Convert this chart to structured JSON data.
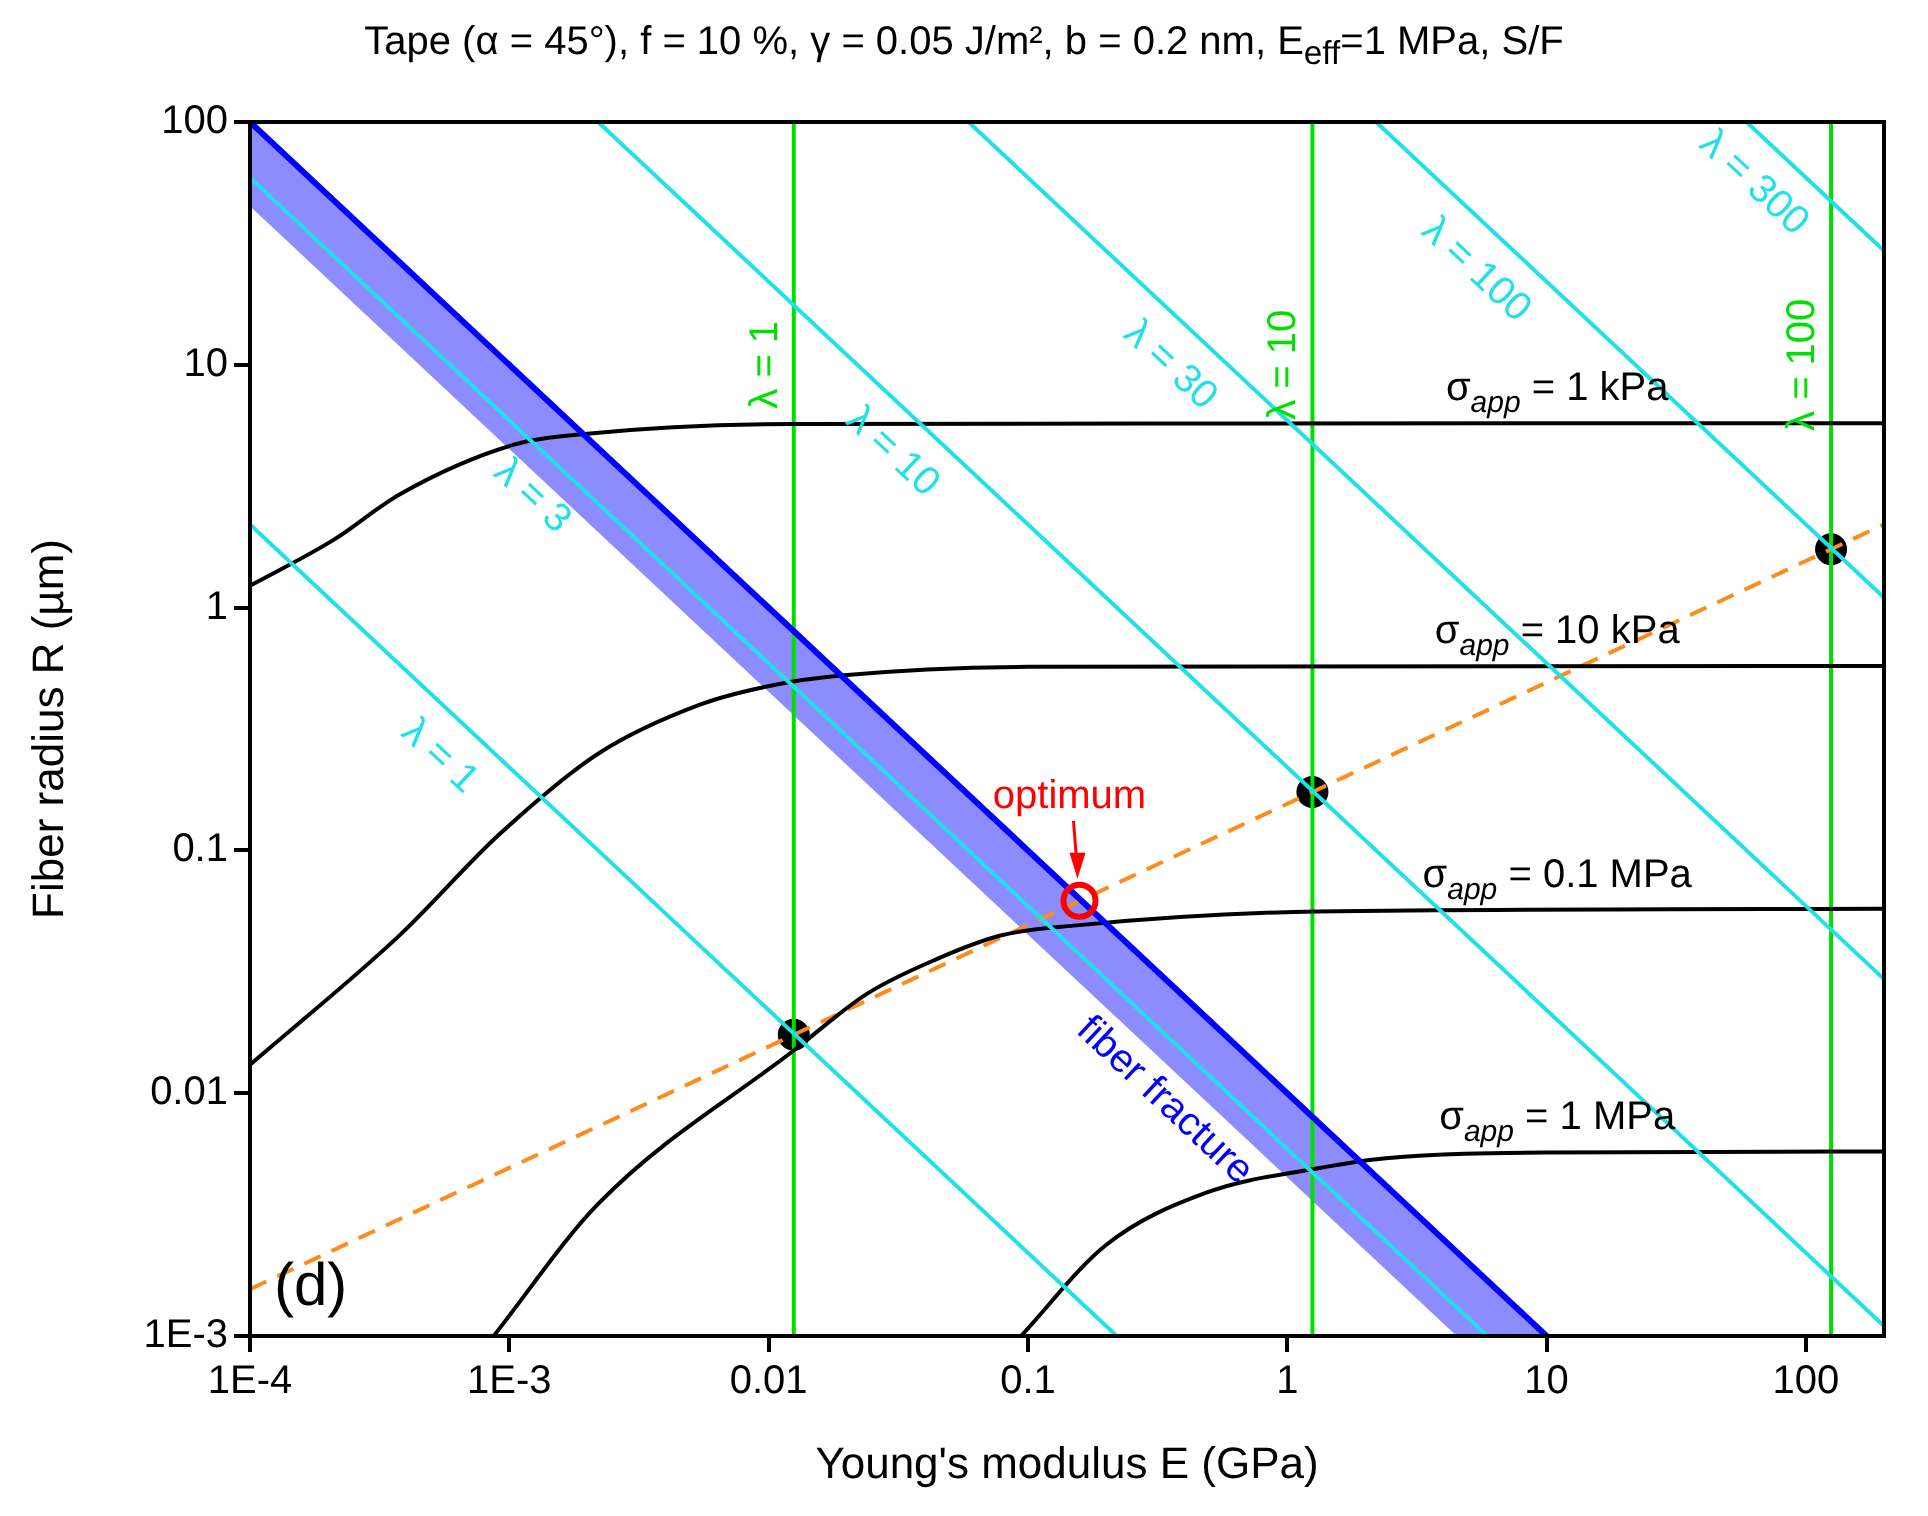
{
  "chart_data": {
    "type": "line",
    "title": "Tape (α = 45°), f = 10 %, γ = 0.05 J/m², b = 0.2 nm, E$_{eff}$=1 MPa, S/F",
    "xlabel": "Young's modulus E (GPa)",
    "ylabel": "Fiber radius R (µm)",
    "log": "xy",
    "xlim": [
      0.0001,
      200
    ],
    "ylim": [
      0.001,
      100
    ],
    "xticks": [
      {
        "value": 0.0001,
        "label": "1E-4"
      },
      {
        "value": 0.001,
        "label": "1E-3"
      },
      0.01,
      0.1,
      1,
      10,
      100
    ],
    "yticks": [
      {
        "value": 0.001,
        "label": "1E-3"
      },
      0.01,
      0.1,
      1,
      10,
      100
    ],
    "marker": "none",
    "series": [
      {
        "name": "fiber fracture",
        "color": "#0000ff",
        "x": [
          0.0001,
          4.5,
          10
        ],
        "values": [
          100,
          0.00222,
          0.001
        ],
        "lower": [
          45,
          0.001,
          0.001
        ],
        "upper": [
          100,
          0.00222,
          0.001
        ]
      },
      {
        "name": "λ = 1",
        "color": "#20e0e8",
        "x": [
          0.0001,
          0.22
        ],
        "values": [
          2.2,
          0.001
        ]
      },
      {
        "name": "λ = 3",
        "color": "#20e0e8",
        "x": [
          0.0001,
          5.9
        ],
        "values": [
          59,
          0.001
        ]
      },
      {
        "name": "λ = 10",
        "color": "#20e0e8",
        "x": [
          0.0022,
          200
        ],
        "values": [
          100,
          0.0011
        ]
      },
      {
        "name": "λ = 30",
        "color": "#20e0e8",
        "x": [
          0.059,
          200
        ],
        "values": [
          100,
          0.0295
        ]
      },
      {
        "name": "λ = 100",
        "color": "#20e0e8",
        "x": [
          2.2,
          200
        ],
        "values": [
          100,
          1.1
        ]
      },
      {
        "name": "λ = 300",
        "color": "#20e0e8",
        "x": [
          59,
          200
        ],
        "values": [
          100,
          29.5
        ]
      },
      {
        "name": "σ$_{app}$ = 1 kPa",
        "color": "#000000",
        "x": [
          0.0001,
          0.00021,
          0.00038,
          0.00105,
          0.002,
          0.0126,
          200
        ],
        "values": [
          1.23,
          1.9,
          2.94,
          4.7,
          5.2,
          5.7,
          5.75
        ]
      },
      {
        "name": "σ$_{app}$ = 10 kPa",
        "color": "#000000",
        "x": [
          0.0001,
          0.00038,
          0.00092,
          0.0022,
          0.0055,
          0.0105,
          0.019,
          0.1,
          200
        ],
        "values": [
          0.0131,
          0.045,
          0.117,
          0.25,
          0.4,
          0.48,
          0.525,
          0.57,
          0.575
        ]
      },
      {
        "name": "σ$_{app}$ = 0.1 MPa",
        "color": "#000000",
        "x": [
          0.00087,
          0.0022,
          0.0126,
          0.024,
          0.044,
          0.079,
          0.15,
          1.3,
          200
        ],
        "values": [
          0.001,
          0.0035,
          0.0151,
          0.0257,
          0.0355,
          0.0447,
          0.049,
          0.056,
          0.0575
        ]
      },
      {
        "name": "σ$_{app}$ = 1 MPa",
        "color": "#000000",
        "x": [
          0.094,
          0.2,
          0.49,
          1.3,
          2.4,
          10,
          200
        ],
        "values": [
          0.001,
          0.00237,
          0.0039,
          0.0049,
          0.0054,
          0.0057,
          0.00575
        ]
      },
      {
        "color": "#ff8c1a",
        "line_style": "dashed",
        "x": [
          0.0001,
          0.0125,
          0.158,
          1.25,
          125,
          200
        ],
        "values": [
          0.00156,
          0.0174,
          0.062,
          0.174,
          1.74,
          2.2
        ]
      },
      {
        "name": "λ = 1",
        "color": "#00e000",
        "x": [
          0.0125,
          0.0125
        ],
        "values": [
          0.001,
          100
        ]
      },
      {
        "name": "λ = 10",
        "color": "#00e000",
        "x": [
          1.25,
          1.25
        ],
        "values": [
          0.001,
          100
        ]
      },
      {
        "name": "λ = 100",
        "color": "#00e000",
        "x": [
          125,
          125
        ],
        "values": [
          0.001,
          100
        ]
      },
      {
        "type": "scatter",
        "marker": "circle",
        "color": "#000000",
        "x": [
          0.0125,
          1.25,
          125
        ],
        "values": [
          0.0174,
          0.174,
          1.74
        ]
      }
    ],
    "annotations": [
      "(d)",
      {
        "text": "optimum",
        "x": 0.158,
        "y": 0.062
      }
    ]
  }
}
